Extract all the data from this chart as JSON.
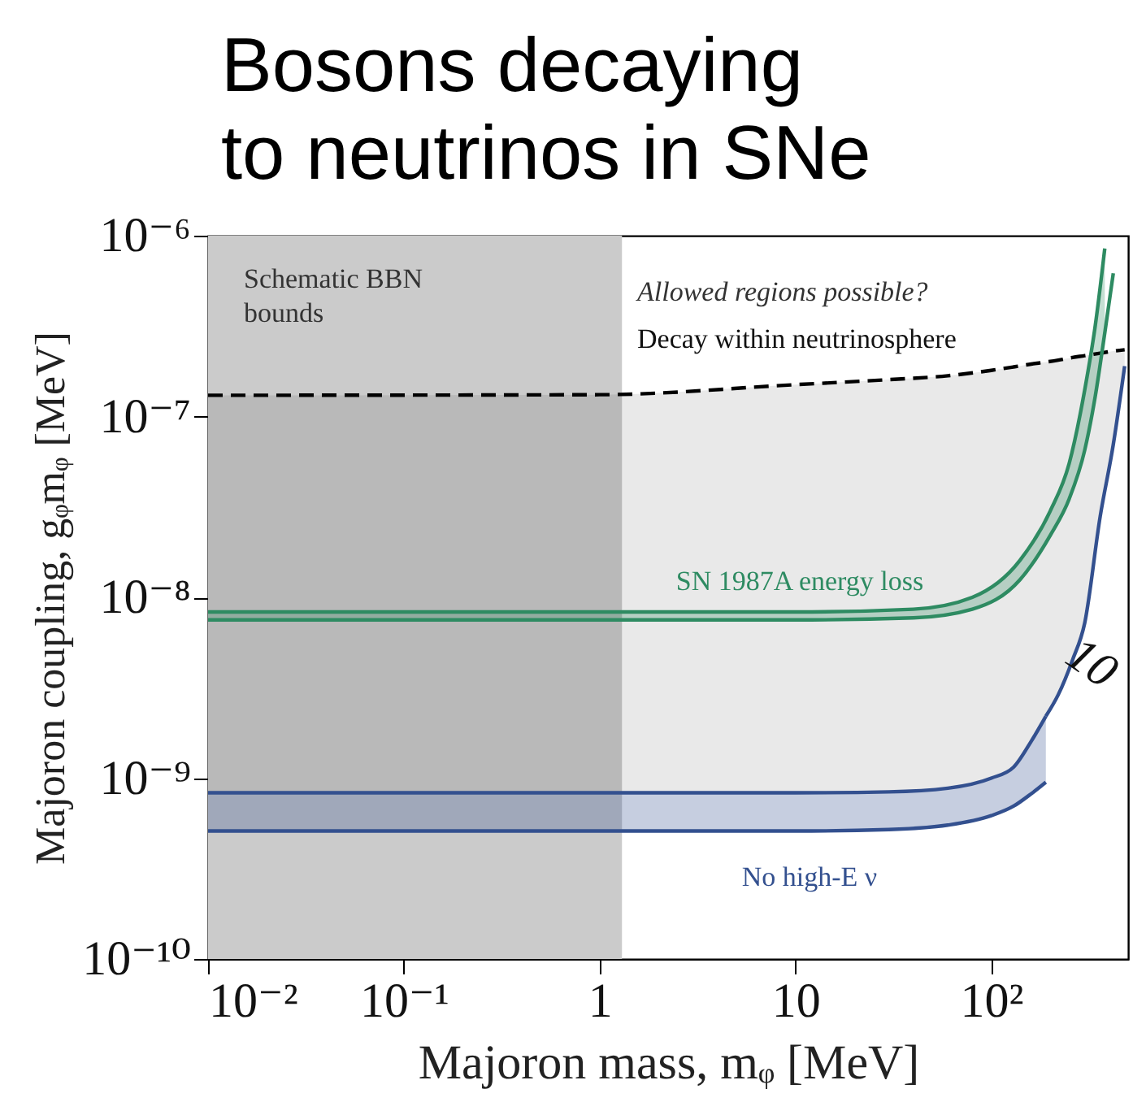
{
  "chart_data": {
    "type": "line",
    "title": "Bosons decaying\nto neutrinos in SNe",
    "xlabel": "Majoron mass, mᵩ [MeV]",
    "ylabel": "Majoron coupling, gᵩmᵩ [MeV]",
    "log": "xy",
    "xlim": [
      0.01,
      500
    ],
    "ylim": [
      1e-10,
      1e-06
    ],
    "xticks": [
      {
        "value": 0.01,
        "label": "10⁻²"
      },
      {
        "value": 0.1,
        "label": "10⁻¹"
      },
      1,
      10,
      {
        "value": 100,
        "label": "10²"
      }
    ],
    "yticks": [
      {
        "value": 1e-10,
        "label": "10⁻¹⁰"
      },
      {
        "value": 1e-09,
        "label": "10⁻⁹"
      },
      {
        "value": 1e-08,
        "label": "10⁻⁸"
      },
      {
        "value": 1e-07,
        "label": "10⁻⁷"
      },
      {
        "value": 1e-06,
        "label": "10⁻⁶"
      }
    ],
    "grid": false,
    "bands": [
      {
        "axis": "x",
        "from": 0.01,
        "to": 1.3,
        "label": "Schematic BBN\nbounds",
        "color": "#cbcbcb"
      }
    ],
    "annotations": [
      "Allowed regions possible?",
      "10"
    ],
    "series": [
      {
        "name": "Decay within neutrinosphere",
        "line_style": "dashed",
        "color": "#000000",
        "x": [
          0.01,
          1,
          10,
          30,
          60,
          100,
          130,
          160,
          190,
          220,
          260,
          300,
          360,
          420,
          480
        ],
        "values": [
          1.31e-07,
          1.32e-07,
          1.5e-07,
          1.6e-07,
          1.68e-07,
          1.8e-07,
          1.88e-07,
          1.95e-07,
          2e-07,
          2.05e-07,
          2.12e-07,
          2.17e-07,
          2.24e-07,
          2.3e-07,
          2.34e-07
        ],
        "upper": [
          1.31e-07,
          1.32e-07,
          1.5e-07,
          1.6e-07,
          1.68e-07,
          1.8e-07,
          1.88e-07,
          1.95e-07,
          2e-07,
          2.05e-07,
          2.12e-07,
          2.17e-07,
          2.24e-07,
          2.3e-07,
          2.34e-07
        ],
        "lower": [
          8.3e-10,
          8.3e-10,
          8.3e-10,
          8.4e-10,
          8.8e-10,
          1e-09,
          1.15e-09,
          1.6e-09,
          2.2e-09,
          2.9e-09,
          4.5e-09,
          7.2e-09,
          2.8e-08,
          7e-08,
          1.9e-07
        ]
      },
      {
        "name": "No high-E ν",
        "color": "#33508f",
        "x": [
          0.01,
          1,
          10,
          30,
          60,
          100,
          130,
          160,
          190
        ],
        "values": [
          8.3e-10,
          8.3e-10,
          8.3e-10,
          8.4e-10,
          8.8e-10,
          1e-09,
          1.15e-09,
          1.6e-09,
          2.2e-09
        ],
        "upper": [
          8.3e-10,
          8.3e-10,
          8.3e-10,
          8.4e-10,
          8.8e-10,
          1e-09,
          1.15e-09,
          1.6e-09,
          2.2e-09
        ],
        "lower": [
          5.1e-10,
          5.1e-10,
          5.1e-10,
          5.2e-10,
          5.5e-10,
          6.2e-10,
          7e-10,
          8.2e-10,
          9.5e-10
        ]
      },
      {
        "color": "#33508f",
        "x": [
          190,
          220,
          260,
          300,
          360,
          420,
          480
        ],
        "values": [
          2.2e-09,
          2.9e-09,
          4.5e-09,
          7.2e-09,
          2.8e-08,
          7e-08,
          1.9e-07
        ]
      },
      {
        "color": "#33508f",
        "x": [
          0.01,
          1,
          10,
          30,
          60,
          100,
          130,
          160,
          190
        ],
        "values": [
          5.1e-10,
          5.1e-10,
          5.1e-10,
          5.2e-10,
          5.5e-10,
          6.2e-10,
          7e-10,
          8.2e-10,
          9.5e-10
        ]
      },
      {
        "name": "SN 1987A energy loss",
        "color": "#2e8b62",
        "x": [
          0.01,
          1,
          10,
          40,
          80,
          140,
          200,
          250,
          300,
          340,
          380
        ],
        "values": [
          8.3e-09,
          8.3e-09,
          8.3e-09,
          8.6e-09,
          1e-08,
          1.6e-08,
          3e-08,
          5.5e-08,
          1.4e-07,
          3.2e-07,
          8.5e-07
        ],
        "upper": [
          8.3e-09,
          8.3e-09,
          8.3e-09,
          8.6e-09,
          1e-08,
          1.6e-08,
          3e-08,
          5.5e-08,
          1.4e-07,
          3.2e-07,
          8.5e-07
        ],
        "lower": [
          7.5e-09,
          7.5e-09,
          7.5e-09,
          7.7e-09,
          8.6e-09,
          1.25e-08,
          2.2e-08,
          3.5e-08,
          6.5e-08,
          1.3e-07,
          2.9e-07
        ]
      },
      {
        "color": "#2e8b62",
        "x": [
          0.01,
          1,
          10,
          40,
          80,
          140,
          200,
          250,
          300,
          340,
          380,
          420
        ],
        "values": [
          7.5e-09,
          7.5e-09,
          7.5e-09,
          7.7e-09,
          8.6e-09,
          1.25e-08,
          2.2e-08,
          3.5e-08,
          6.5e-08,
          1.3e-07,
          2.9e-07,
          6.2e-07
        ]
      }
    ]
  }
}
